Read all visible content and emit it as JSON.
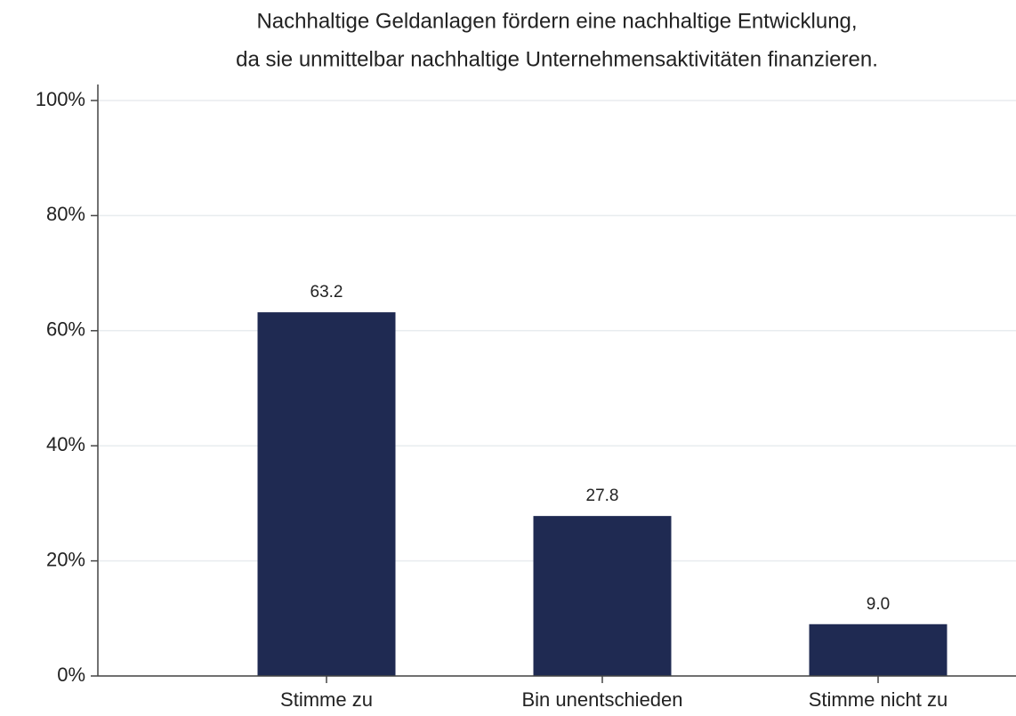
{
  "chart_data": {
    "type": "bar",
    "title": [
      "Nachhaltige Geldanlagen fördern eine nachhaltige Entwicklung,",
      "da sie unmittelbar nachhaltige Unternehmensaktivitäten finanzieren."
    ],
    "categories": [
      "Stimme zu",
      "Bin unentschieden",
      "Stimme nicht zu"
    ],
    "values": [
      63.2,
      27.8,
      9.0
    ],
    "value_labels": [
      "63.2",
      "27.8",
      "9.0"
    ],
    "color": "#1f2a52",
    "ylim": [
      0,
      100
    ],
    "yticks": [
      {
        "value": 0,
        "label": "0%"
      },
      {
        "value": 20,
        "label": "20%"
      },
      {
        "value": 40,
        "label": "40%"
      },
      {
        "value": 60,
        "label": "60%"
      },
      {
        "value": 80,
        "label": "80%"
      },
      {
        "value": 100,
        "label": "100%"
      }
    ],
    "grid": true
  }
}
